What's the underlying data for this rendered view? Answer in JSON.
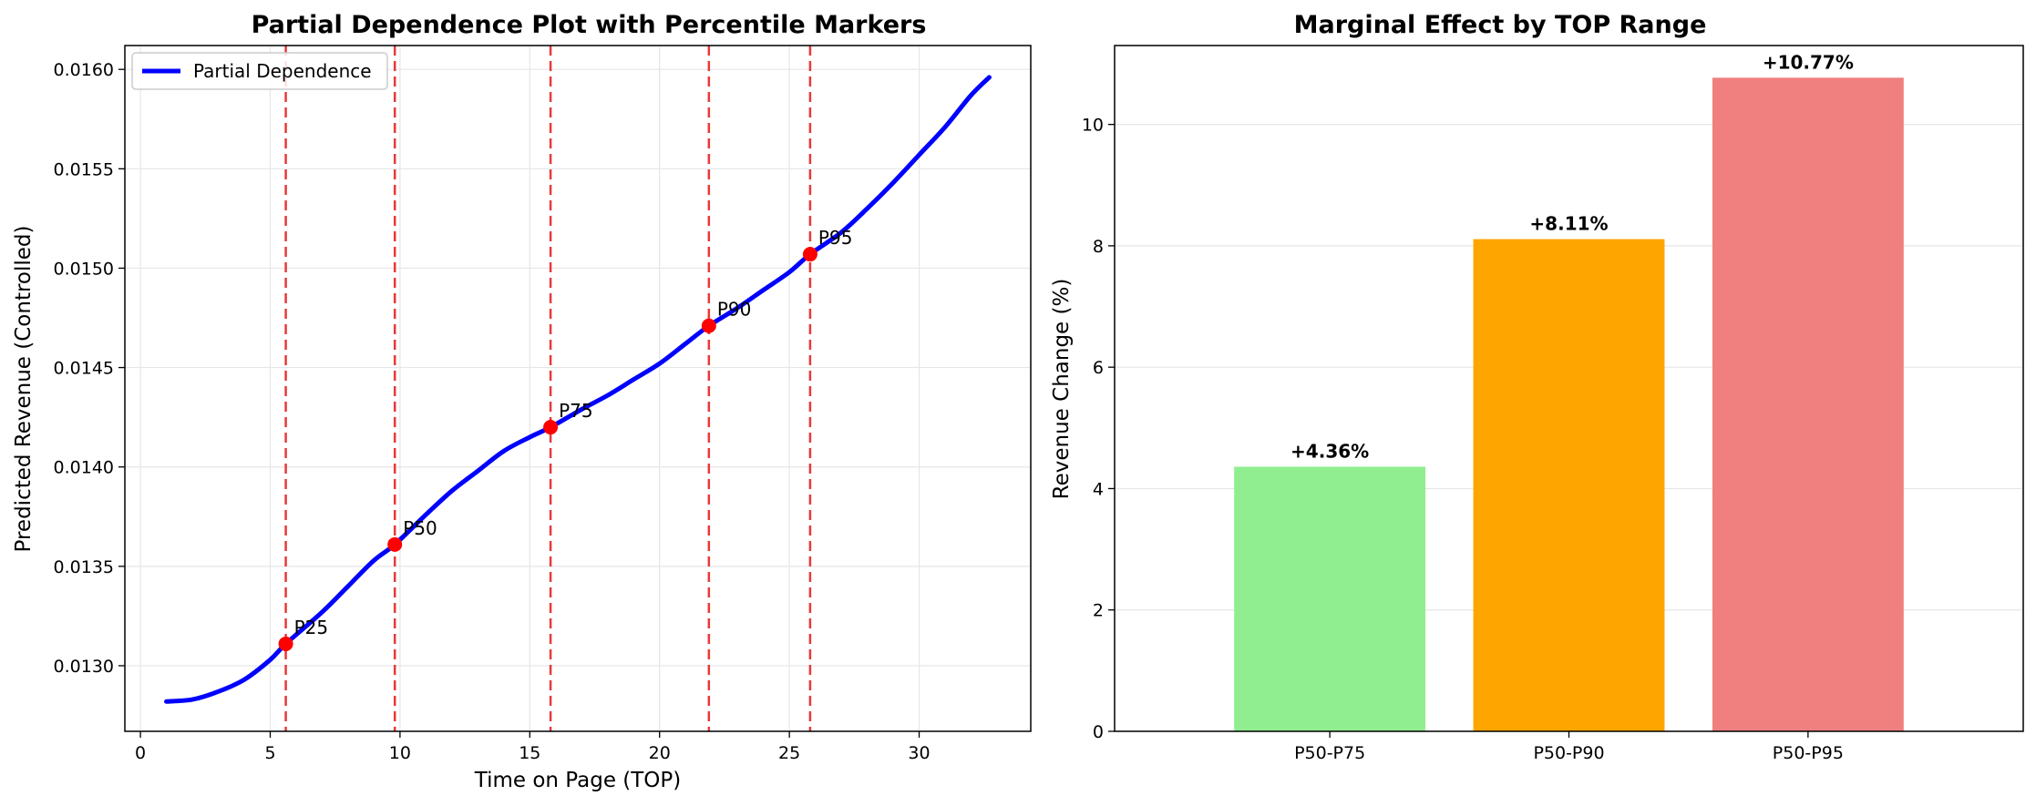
{
  "chart_data": [
    {
      "type": "line",
      "title": "Partial Dependence Plot with Percentile Markers",
      "xlabel": "Time on Page (TOP)",
      "ylabel": "Predicted Revenue (Controlled)",
      "xlim": [
        -0.6,
        34.3
      ],
      "ylim": [
        0.01267,
        0.01612
      ],
      "xticks": [
        0,
        5,
        10,
        15,
        20,
        25,
        30
      ],
      "xtick_labels": [
        "0",
        "5",
        "10",
        "15",
        "20",
        "25",
        "30"
      ],
      "yticks": [
        0.013,
        0.0135,
        0.014,
        0.0145,
        0.015,
        0.0155,
        0.016
      ],
      "ytick_labels": [
        "0.0130",
        "0.0135",
        "0.0140",
        "0.0145",
        "0.0150",
        "0.0155",
        "0.0160"
      ],
      "grid": true,
      "legend": {
        "position": "top-left",
        "entries": [
          "Partial Dependence"
        ]
      },
      "series": [
        {
          "name": "Partial Dependence",
          "color": "#0000ff",
          "x": [
            1.0,
            2.0,
            3.0,
            4.0,
            5.0,
            5.6,
            7.0,
            8.0,
            9.0,
            9.8,
            11.0,
            12.0,
            13.0,
            14.0,
            15.0,
            15.8,
            17.0,
            18.0,
            19.0,
            20.0,
            21.0,
            21.9,
            23.0,
            24.0,
            25.0,
            25.8,
            27.0,
            28.0,
            29.0,
            30.0,
            31.0,
            32.0,
            32.7
          ],
          "y": [
            0.01282,
            0.01283,
            0.01287,
            0.01293,
            0.01303,
            0.01311,
            0.01327,
            0.0134,
            0.01353,
            0.01361,
            0.01376,
            0.01388,
            0.01398,
            0.01408,
            0.01415,
            0.0142,
            0.01429,
            0.01436,
            0.01444,
            0.01452,
            0.01462,
            0.01471,
            0.0148,
            0.01489,
            0.01498,
            0.01507,
            0.01518,
            0.0153,
            0.01543,
            0.01557,
            0.01571,
            0.01587,
            0.01596
          ]
        }
      ],
      "markers": {
        "color": "#ff0000",
        "line_color": "#e8393a",
        "points": [
          {
            "label": "P25",
            "x": 5.6,
            "y": 0.01311
          },
          {
            "label": "P50",
            "x": 9.8,
            "y": 0.01361
          },
          {
            "label": "P75",
            "x": 15.8,
            "y": 0.0142
          },
          {
            "label": "P90",
            "x": 21.9,
            "y": 0.01471
          },
          {
            "label": "P95",
            "x": 25.8,
            "y": 0.01507
          }
        ]
      }
    },
    {
      "type": "bar",
      "title": "Marginal Effect by TOP Range",
      "xlabel": "",
      "ylabel": "Revenue Change (%)",
      "ylim": [
        0,
        11.3
      ],
      "yticks": [
        0,
        2,
        4,
        6,
        8,
        10
      ],
      "ytick_labels": [
        "0",
        "2",
        "4",
        "6",
        "8",
        "10"
      ],
      "grid": true,
      "categories": [
        "P50-P75",
        "P50-P90",
        "P50-P95"
      ],
      "values": [
        4.36,
        8.11,
        10.77
      ],
      "value_labels": [
        "+4.36%",
        "+8.11%",
        "+10.77%"
      ],
      "colors": [
        "#90ee90",
        "#ffa500",
        "#f08080"
      ]
    }
  ]
}
